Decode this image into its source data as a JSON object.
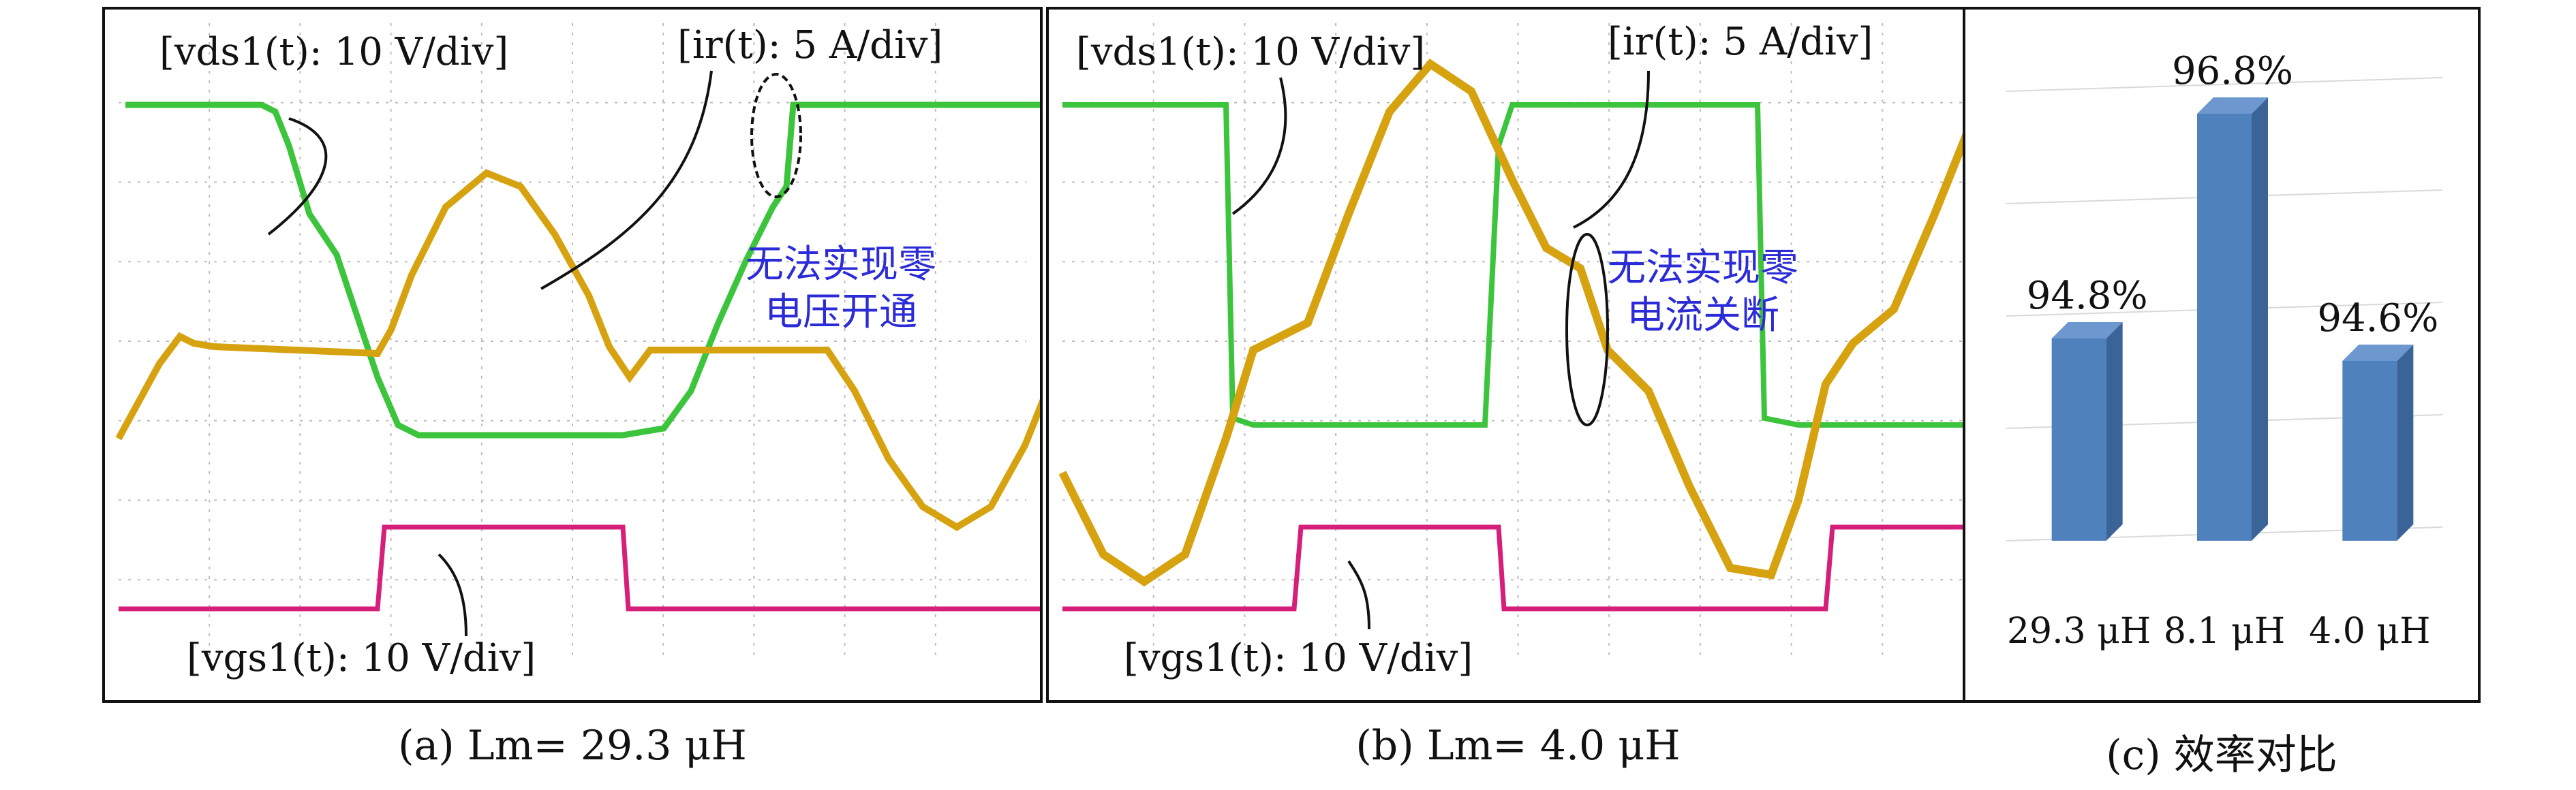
{
  "panel_a": {
    "caption": "(a) Lm= 29.3 μH",
    "labels": {
      "vds": "[vds1(t): 10 V/div]",
      "ir": "[ir(t): 5 A/div]",
      "vgs": "[vgs1(t): 10 V/div]"
    },
    "note": [
      "无法实现零",
      "电压开通"
    ],
    "colors": {
      "vds": "#3cc43c",
      "ir": "#d6a20f",
      "vgs": "#d61f7a",
      "note": "#2b2bd8"
    }
  },
  "panel_b": {
    "caption": "(b) Lm= 4.0 μH",
    "labels": {
      "vds": "[vds1(t): 10 V/div]",
      "ir": "[ir(t): 5 A/div]",
      "vgs": "[vgs1(t): 10 V/div]"
    },
    "note": [
      "无法实现零",
      "电流关断"
    ],
    "colors": {
      "vds": "#3cc43c",
      "ir": "#d6a20f",
      "vgs": "#d61f7a",
      "note": "#2b2bd8"
    }
  },
  "chart_data": {
    "type": "bar",
    "caption": "(c) 效率对比",
    "categories": [
      "29.3 μH",
      "8.1 μH",
      "4.0 μH"
    ],
    "values": [
      94.8,
      96.8,
      94.6
    ],
    "value_labels": [
      "94.8%",
      "96.8%",
      "94.6%"
    ],
    "ylim": [
      93,
      97
    ],
    "grid": true,
    "bar_color": "#4f81bd"
  }
}
